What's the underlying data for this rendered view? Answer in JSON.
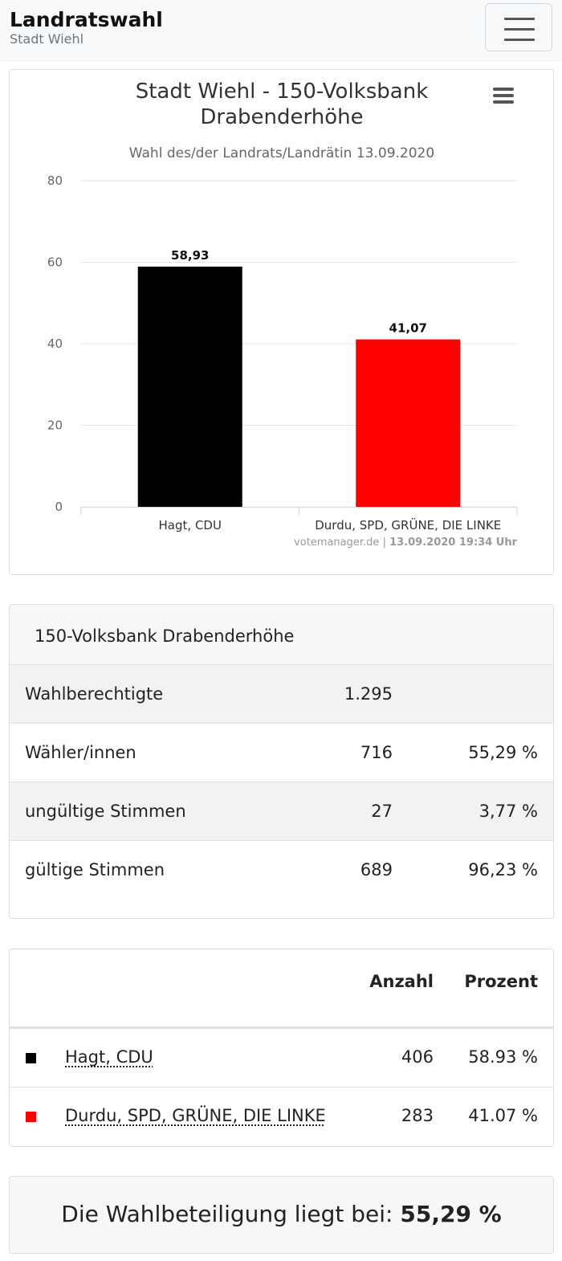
{
  "navbar": {
    "title": "Landratswahl",
    "subtitle": "Stadt Wiehl"
  },
  "chart_data": {
    "type": "bar",
    "title_line1": "Stadt Wiehl - 150-Volksbank",
    "title_line2": "Drabenderhöhe",
    "subtitle": "Wahl des/der Landrats/Landrätin 13.09.2020",
    "categories": [
      "Hagt, CDU",
      "Durdu, SPD, GRÜNE, DIE LINKE"
    ],
    "values": [
      58.93,
      41.07
    ],
    "data_labels": [
      "58,93",
      "41,07"
    ],
    "colors": [
      "#000000",
      "#ff0000"
    ],
    "ylim": [
      0,
      80
    ],
    "yticks": [
      0,
      20,
      40,
      60,
      80
    ],
    "grid": true,
    "credit_site": "votemanager.de",
    "credit_sep": " | ",
    "credit_time": "13.09.2020 19:34 Uhr",
    "menu_icon": "hamburger-menu-icon"
  },
  "stats": {
    "header": "150-Volksbank Drabenderhöhe",
    "rows": [
      {
        "label": "Wahlberechtigte",
        "count": "1.295",
        "pct": ""
      },
      {
        "label": "Wähler/innen",
        "count": "716",
        "pct": "55,29 %"
      },
      {
        "label": "ungültige Stimmen",
        "count": "27",
        "pct": "3,77 %"
      },
      {
        "label": "gültige Stimmen",
        "count": "689",
        "pct": "96,23 %"
      }
    ]
  },
  "results": {
    "col_count": "Anzahl",
    "col_pct": "Prozent",
    "rows": [
      {
        "name": "Hagt, CDU",
        "count": "406",
        "pct": "58.93 %",
        "color": "#000000"
      },
      {
        "name": "Durdu, SPD, GRÜNE, DIE LINKE",
        "count": "283",
        "pct": "41.07 %",
        "color": "#ff0000"
      }
    ]
  },
  "turnout": {
    "text": "Die Wahlbeteiligung liegt bei:",
    "value": "55,29 %"
  }
}
